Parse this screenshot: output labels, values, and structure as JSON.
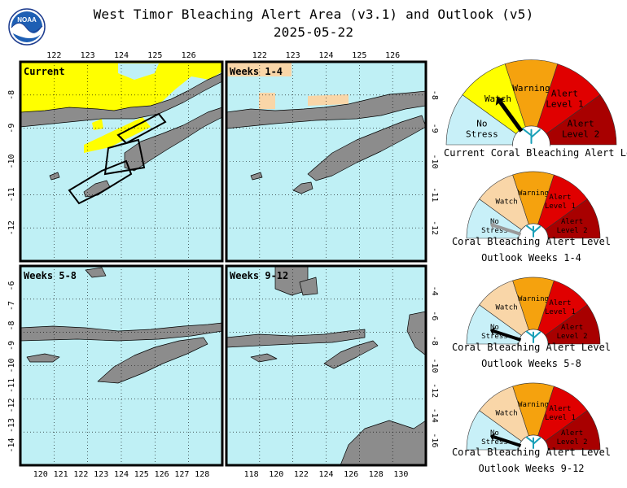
{
  "header": {
    "title": "West Timor Bleaching Alert Area (v3.1) and Outlook (v5)",
    "date": "2025-05-22",
    "logo_text": "NOAA"
  },
  "colors": {
    "ocean": "#bff0f5",
    "land": "#8c8c8c",
    "no_stress": "#c8f0f8",
    "watch": "#ffff00",
    "watch_light": "#f9d6a8",
    "warning": "#f5a20e",
    "alert1": "#e00000",
    "alert2": "#a80000"
  },
  "panels": [
    {
      "label": "Current",
      "lon_ticks": [
        "122",
        "123",
        "124",
        "125",
        "126"
      ],
      "lat_left": [
        "-8",
        "-9",
        "-10",
        "-11",
        "-12"
      ],
      "lat_right": []
    },
    {
      "label": "Weeks 1-4",
      "lon_ticks": [
        "122",
        "123",
        "124",
        "125",
        "126"
      ],
      "lat_left": [],
      "lat_right": [
        "-8",
        "-9",
        "-10",
        "-11",
        "-12"
      ]
    },
    {
      "label": "Weeks 5-8",
      "lon_ticks": [
        "120",
        "121",
        "122",
        "123",
        "124",
        "125",
        "126",
        "127",
        "128"
      ],
      "lat_left": [
        "-6",
        "-7",
        "-8",
        "-9",
        "-10",
        "-11",
        "-12",
        "-13",
        "-14"
      ],
      "lat_right": []
    },
    {
      "label": "Weeks 9-12",
      "lon_ticks": [
        "118",
        "120",
        "122",
        "124",
        "126",
        "128",
        "130"
      ],
      "lat_left": [],
      "lat_right": [
        "-4",
        "-6",
        "-8",
        "-10",
        "-12",
        "-14",
        "-16"
      ]
    }
  ],
  "gauges": [
    {
      "level_index": 1,
      "captions": [
        "Current Coral Bleaching Alert Level"
      ],
      "labels": {
        "no_stress": [
          "No",
          "Stress"
        ],
        "watch": [
          "Watch"
        ],
        "warning": [
          "Warning"
        ],
        "alert1": [
          "Alert",
          "Level 1"
        ],
        "alert2": [
          "Alert",
          "Level 2"
        ]
      }
    },
    {
      "level_index": 0,
      "captions": [
        "Coral Bleaching Alert Level",
        "Outlook Weeks 1-4"
      ],
      "labels": {
        "no_stress": [
          "No",
          "Stress"
        ],
        "watch": [
          "Watch"
        ],
        "warning": [
          "Warning"
        ],
        "alert1": [
          "Alert",
          "Level 1"
        ],
        "alert2": [
          "Alert",
          "Level 2"
        ]
      }
    },
    {
      "level_index": 0,
      "captions": [
        "Coral Bleaching Alert Level",
        "Outlook Weeks 5-8"
      ],
      "labels": {
        "no_stress": [
          "No",
          "Stress"
        ],
        "watch": [
          "Watch"
        ],
        "warning": [
          "Warning"
        ],
        "alert1": [
          "Alert",
          "Level 1"
        ],
        "alert2": [
          "Alert",
          "Level 2"
        ]
      }
    },
    {
      "level_index": 0,
      "captions": [
        "Coral Bleaching Alert Level",
        "Outlook Weeks 9-12"
      ],
      "labels": {
        "no_stress": [
          "No",
          "Stress"
        ],
        "watch": [
          "Watch"
        ],
        "warning": [
          "Warning"
        ],
        "alert1": [
          "Alert",
          "Level 1"
        ],
        "alert2": [
          "Alert",
          "Level 2"
        ]
      }
    }
  ]
}
